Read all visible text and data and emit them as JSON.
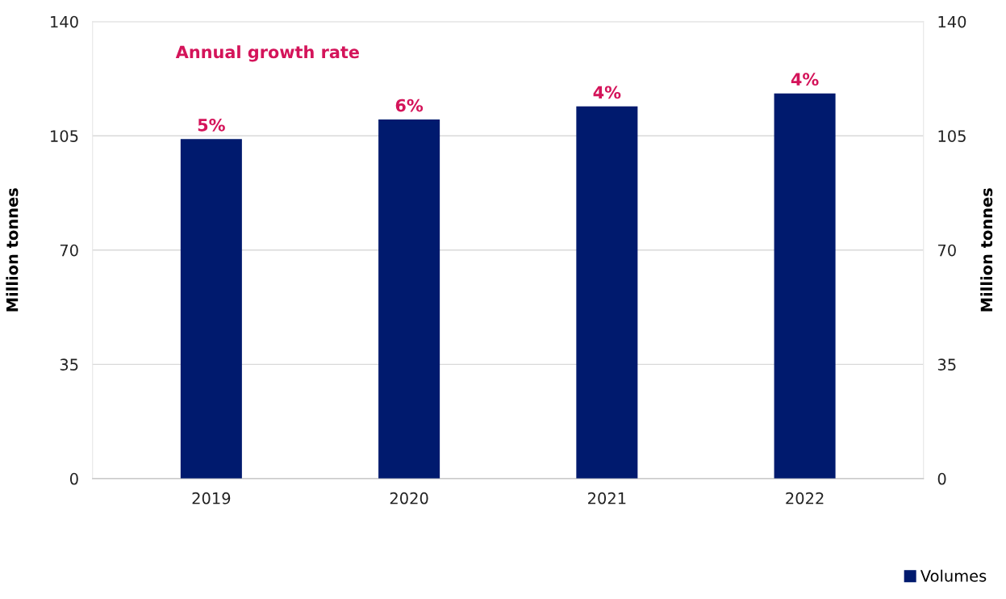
{
  "chart_data": {
    "type": "bar",
    "ylabel": "Million tonnes",
    "y2label": "Million tonnes",
    "categories": [
      "2019",
      "2020",
      "2021",
      "2022"
    ],
    "series": [
      {
        "name": "Volumes",
        "color": "#001a6e",
        "values": [
          104,
          110,
          114,
          118
        ]
      }
    ],
    "annotations": [
      "Annual growth rate",
      {
        "text": "5%",
        "x": "2019",
        "y": 104
      },
      {
        "text": "6%",
        "x": "2020",
        "y": 110
      },
      {
        "text": "4%",
        "x": "2021",
        "y": 114
      },
      {
        "text": "4%",
        "x": "2022",
        "y": 118
      }
    ],
    "ylim": [
      0,
      140
    ],
    "yticks": [
      0,
      35,
      70,
      105,
      140
    ],
    "y2lim": [
      0,
      140
    ],
    "y2ticks": [
      0,
      35,
      70,
      105,
      140
    ],
    "grid": "y",
    "legend": "bottom right"
  }
}
